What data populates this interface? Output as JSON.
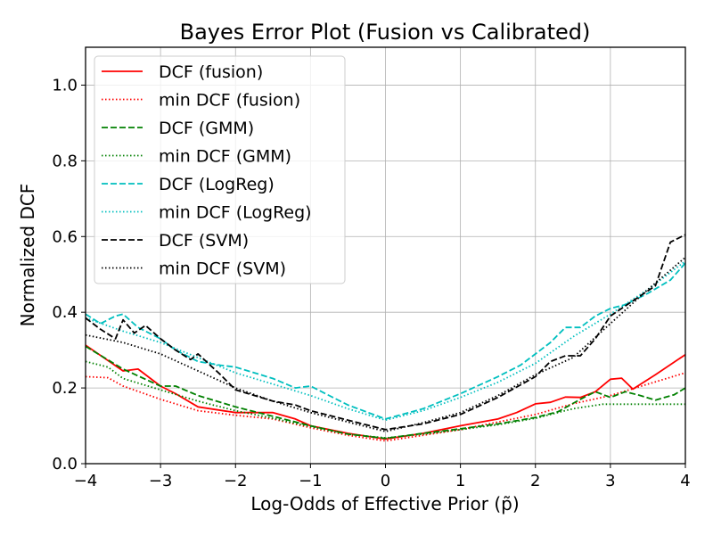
{
  "chart_data": {
    "type": "line",
    "title": "Bayes Error Plot (Fusion vs Calibrated)",
    "xlabel": "Log-Odds of Effective Prior (p̃)",
    "ylabel": "Normalized DCF",
    "xlim": [
      -4,
      4
    ],
    "ylim": [
      0,
      1.1
    ],
    "xticks": [
      -4,
      -3,
      -2,
      -1,
      0,
      1,
      2,
      3,
      4
    ],
    "yticks": [
      0.0,
      0.2,
      0.4,
      0.6,
      0.8,
      1.0
    ],
    "xtick_labels": [
      "−4",
      "−3",
      "−2",
      "−1",
      "0",
      "1",
      "2",
      "3",
      "4"
    ],
    "ytick_labels": [
      "0.0",
      "0.2",
      "0.4",
      "0.6",
      "0.8",
      "1.0"
    ],
    "grid": true,
    "legend_position": "top-left",
    "series": [
      {
        "name": "DCF (fusion)",
        "color": "#ff0000",
        "style": "solid",
        "x": [
          -4.0,
          -3.5,
          -3.3,
          -3.0,
          -2.8,
          -2.5,
          -2.0,
          -1.5,
          -1.2,
          -1.0,
          -0.5,
          0.0,
          0.5,
          1.0,
          1.5,
          1.75,
          2.0,
          2.2,
          2.4,
          2.6,
          2.8,
          3.0,
          3.15,
          3.3,
          3.6,
          4.0
        ],
        "y": [
          0.313,
          0.245,
          0.25,
          0.205,
          0.185,
          0.15,
          0.135,
          0.135,
          0.118,
          0.1,
          0.08,
          0.065,
          0.08,
          0.1,
          0.118,
          0.135,
          0.158,
          0.162,
          0.176,
          0.175,
          0.19,
          0.223,
          0.226,
          0.197,
          0.235,
          0.288
        ]
      },
      {
        "name": "min DCF (fusion)",
        "color": "#ff0000",
        "style": "dotted",
        "x": [
          -4.0,
          -3.7,
          -3.5,
          -3.0,
          -2.5,
          -2.0,
          -1.5,
          -1.0,
          -0.5,
          0.0,
          0.5,
          1.0,
          1.5,
          2.0,
          2.5,
          3.0,
          3.5,
          4.0
        ],
        "y": [
          0.23,
          0.227,
          0.205,
          0.17,
          0.14,
          0.128,
          0.118,
          0.095,
          0.075,
          0.06,
          0.075,
          0.09,
          0.11,
          0.13,
          0.158,
          0.18,
          0.21,
          0.24
        ]
      },
      {
        "name": "DCF (GMM)",
        "color": "#008000",
        "style": "dashed",
        "x": [
          -4.0,
          -3.5,
          -3.0,
          -2.8,
          -2.5,
          -2.0,
          -1.5,
          -1.0,
          -0.5,
          0.0,
          0.5,
          1.0,
          1.5,
          2.0,
          2.3,
          2.6,
          2.8,
          3.0,
          3.2,
          3.4,
          3.6,
          3.85,
          4.0
        ],
        "y": [
          0.31,
          0.25,
          0.205,
          0.205,
          0.18,
          0.15,
          0.125,
          0.1,
          0.078,
          0.067,
          0.08,
          0.092,
          0.105,
          0.122,
          0.137,
          0.17,
          0.19,
          0.175,
          0.19,
          0.18,
          0.168,
          0.182,
          0.2
        ]
      },
      {
        "name": "min DCF (GMM)",
        "color": "#008000",
        "style": "dotted",
        "x": [
          -4.0,
          -3.7,
          -3.5,
          -3.0,
          -2.5,
          -2.0,
          -1.5,
          -1.0,
          -0.5,
          0.0,
          0.5,
          1.0,
          1.5,
          2.0,
          2.5,
          2.9,
          3.5,
          4.0
        ],
        "y": [
          0.27,
          0.255,
          0.225,
          0.195,
          0.165,
          0.14,
          0.12,
          0.098,
          0.078,
          0.068,
          0.078,
          0.09,
          0.103,
          0.12,
          0.145,
          0.157,
          0.157,
          0.157
        ]
      },
      {
        "name": "DCF (LogReg)",
        "color": "#00bfbf",
        "style": "dashed",
        "x": [
          -4.0,
          -3.8,
          -3.6,
          -3.5,
          -3.3,
          -3.0,
          -2.8,
          -2.5,
          -2.2,
          -2.0,
          -1.5,
          -1.2,
          -1.0,
          -0.5,
          0.0,
          0.5,
          1.0,
          1.5,
          1.8,
          2.0,
          2.2,
          2.4,
          2.6,
          2.8,
          3.0,
          3.2,
          3.5,
          3.8,
          4.0
        ],
        "y": [
          0.395,
          0.37,
          0.39,
          0.395,
          0.36,
          0.33,
          0.3,
          0.27,
          0.26,
          0.255,
          0.225,
          0.2,
          0.205,
          0.155,
          0.118,
          0.145,
          0.185,
          0.23,
          0.26,
          0.29,
          0.32,
          0.36,
          0.36,
          0.39,
          0.41,
          0.42,
          0.45,
          0.485,
          0.53
        ]
      },
      {
        "name": "min DCF (LogReg)",
        "color": "#00bfbf",
        "style": "dotted",
        "x": [
          -4.0,
          -3.5,
          -3.0,
          -2.5,
          -2.0,
          -1.5,
          -1.0,
          -0.5,
          0.0,
          0.5,
          1.0,
          1.5,
          2.0,
          2.5,
          3.0,
          3.5,
          4.0
        ],
        "y": [
          0.385,
          0.35,
          0.32,
          0.28,
          0.24,
          0.21,
          0.18,
          0.145,
          0.115,
          0.14,
          0.175,
          0.215,
          0.265,
          0.335,
          0.395,
          0.46,
          0.535
        ]
      },
      {
        "name": "DCF (SVM)",
        "color": "#000000",
        "style": "dashed",
        "x": [
          -4.0,
          -3.8,
          -3.6,
          -3.5,
          -3.35,
          -3.2,
          -3.0,
          -2.8,
          -2.6,
          -2.5,
          -2.2,
          -2.0,
          -1.5,
          -1.2,
          -1.0,
          -0.5,
          0.0,
          0.5,
          1.0,
          1.5,
          2.0,
          2.2,
          2.4,
          2.6,
          2.8,
          3.0,
          3.3,
          3.6,
          3.8,
          4.0
        ],
        "y": [
          0.385,
          0.355,
          0.33,
          0.38,
          0.345,
          0.365,
          0.33,
          0.3,
          0.275,
          0.29,
          0.235,
          0.195,
          0.165,
          0.155,
          0.14,
          0.115,
          0.09,
          0.105,
          0.13,
          0.175,
          0.23,
          0.27,
          0.285,
          0.285,
          0.33,
          0.39,
          0.43,
          0.47,
          0.585,
          0.605
        ]
      },
      {
        "name": "min DCF (SVM)",
        "color": "#000000",
        "style": "dotted",
        "x": [
          -4.0,
          -3.5,
          -3.0,
          -2.5,
          -2.0,
          -1.5,
          -1.0,
          -0.5,
          0.0,
          0.5,
          1.0,
          1.5,
          2.0,
          2.5,
          3.0,
          3.5,
          4.0
        ],
        "y": [
          0.34,
          0.32,
          0.29,
          0.245,
          0.2,
          0.165,
          0.135,
          0.11,
          0.085,
          0.108,
          0.135,
          0.18,
          0.235,
          0.28,
          0.37,
          0.46,
          0.545
        ]
      }
    ]
  }
}
